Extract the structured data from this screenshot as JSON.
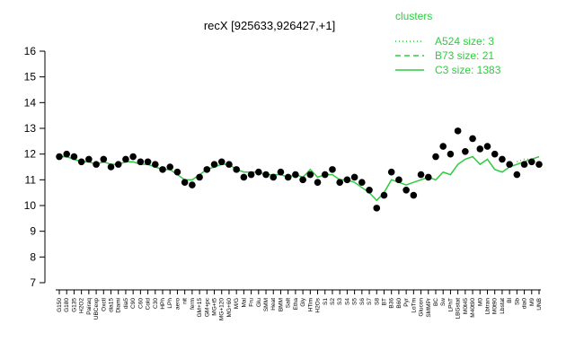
{
  "chart_data": {
    "type": "scatter",
    "title": "recX [925633,926427,+1]",
    "categories": [
      "G150",
      "G180",
      "G135",
      "H2O2",
      "Pairaq",
      "UBCexp",
      "Oxctl",
      "dia15",
      "Diami",
      "dia5",
      "C90",
      "C60",
      "Cold",
      "C30",
      "HPh",
      "LPh",
      "aero",
      "nit",
      "ferm",
      "GM+15",
      "GM+pc",
      "MG+t5",
      "MG+120",
      "MG+60",
      "M/G",
      "Mal",
      "Fru",
      "Glu",
      "SMM",
      "Heat",
      "BMM",
      "Salt",
      "Etha",
      "Gly",
      "HTim",
      "H2Os",
      "S1",
      "S2",
      "S3",
      "S4",
      "S5",
      "S6",
      "S7",
      "S8",
      "BT",
      "B36",
      "B60",
      "Pyr",
      "LoTm",
      "Glucon",
      "SMMPr",
      "BC",
      "Sw",
      "LPhT",
      "LBGstat",
      "M0t45",
      "M40t90",
      "M0",
      "Lbtran",
      "M0t90",
      "Lbstat",
      "Bl",
      "Sb",
      "dia0",
      "M9",
      "UNB"
    ],
    "values": [
      11.9,
      12.0,
      11.9,
      11.7,
      11.8,
      11.6,
      11.8,
      11.5,
      11.6,
      11.8,
      11.9,
      11.7,
      11.7,
      11.6,
      11.4,
      11.5,
      11.3,
      10.9,
      10.8,
      11.1,
      11.4,
      11.6,
      11.7,
      11.6,
      11.4,
      11.1,
      11.2,
      11.3,
      11.2,
      11.1,
      11.3,
      11.1,
      11.2,
      11.0,
      11.2,
      10.9,
      11.2,
      11.4,
      10.9,
      11.0,
      11.1,
      10.9,
      10.6,
      9.9,
      10.4,
      11.3,
      11.0,
      10.6,
      10.4,
      11.2,
      11.1,
      11.9,
      12.3,
      12.0,
      12.9,
      12.1,
      12.6,
      12.2,
      12.3,
      12.0,
      11.8,
      11.6,
      11.2,
      11.6,
      11.7,
      11.6
    ],
    "color": "#000000",
    "legend_title": "clusters",
    "series": [
      {
        "name": "A524 size: 3",
        "color": "#2ecc40",
        "dash": "dotted",
        "values": [
          null,
          null,
          null,
          null,
          null,
          null,
          null,
          null,
          null,
          null,
          null,
          null,
          null,
          null,
          null,
          null,
          null,
          null,
          null,
          null,
          null,
          null,
          null,
          null,
          null,
          null,
          null,
          null,
          null,
          null,
          null,
          null,
          null,
          null,
          null,
          null,
          null,
          null,
          null,
          null,
          null,
          null,
          null,
          null,
          null,
          null,
          null,
          null,
          null,
          null,
          null,
          null,
          null,
          null,
          null,
          null,
          null,
          null,
          null,
          null,
          null,
          null,
          11.7,
          11.8,
          11.8,
          11.9
        ]
      },
      {
        "name": "B73 size: 21",
        "color": "#2ecc40",
        "dash": "dashed",
        "values": [
          11.9,
          11.9,
          11.8,
          11.7,
          null,
          null,
          null,
          null,
          null,
          null,
          null,
          null,
          null,
          null,
          null,
          null,
          null,
          null,
          null,
          null,
          null,
          null,
          null,
          null,
          null,
          null,
          null,
          null,
          null,
          null,
          null,
          null,
          null,
          null,
          null,
          null,
          null,
          null,
          null,
          null,
          null,
          null,
          null,
          null,
          null,
          null,
          null,
          null,
          null,
          null,
          null,
          null,
          null,
          null,
          null,
          null,
          null,
          null,
          null,
          null,
          null,
          null,
          null,
          null,
          null,
          null
        ]
      },
      {
        "name": "C3 size: 1383",
        "color": "#2ecc40",
        "dash": "solid",
        "values": [
          11.9,
          11.9,
          11.8,
          11.7,
          11.7,
          11.6,
          11.7,
          11.6,
          11.6,
          11.7,
          11.7,
          11.6,
          11.6,
          11.5,
          11.4,
          11.4,
          11.2,
          11.0,
          11.0,
          11.2,
          11.4,
          11.5,
          11.6,
          11.6,
          11.4,
          11.3,
          11.3,
          11.3,
          11.2,
          11.2,
          11.2,
          11.1,
          11.2,
          11.1,
          11.4,
          11.1,
          11.2,
          11.2,
          11.0,
          11.0,
          10.9,
          10.7,
          10.5,
          10.2,
          10.5,
          11.0,
          10.9,
          10.8,
          10.9,
          11.0,
          11.1,
          11.0,
          11.3,
          11.2,
          11.6,
          11.8,
          11.9,
          11.6,
          11.8,
          11.4,
          11.3,
          11.5,
          11.6,
          11.7,
          11.8,
          11.9
        ]
      }
    ],
    "ylim": [
      7,
      16
    ],
    "yticks": [
      7,
      8,
      9,
      10,
      11,
      12,
      13,
      14,
      15,
      16
    ]
  }
}
